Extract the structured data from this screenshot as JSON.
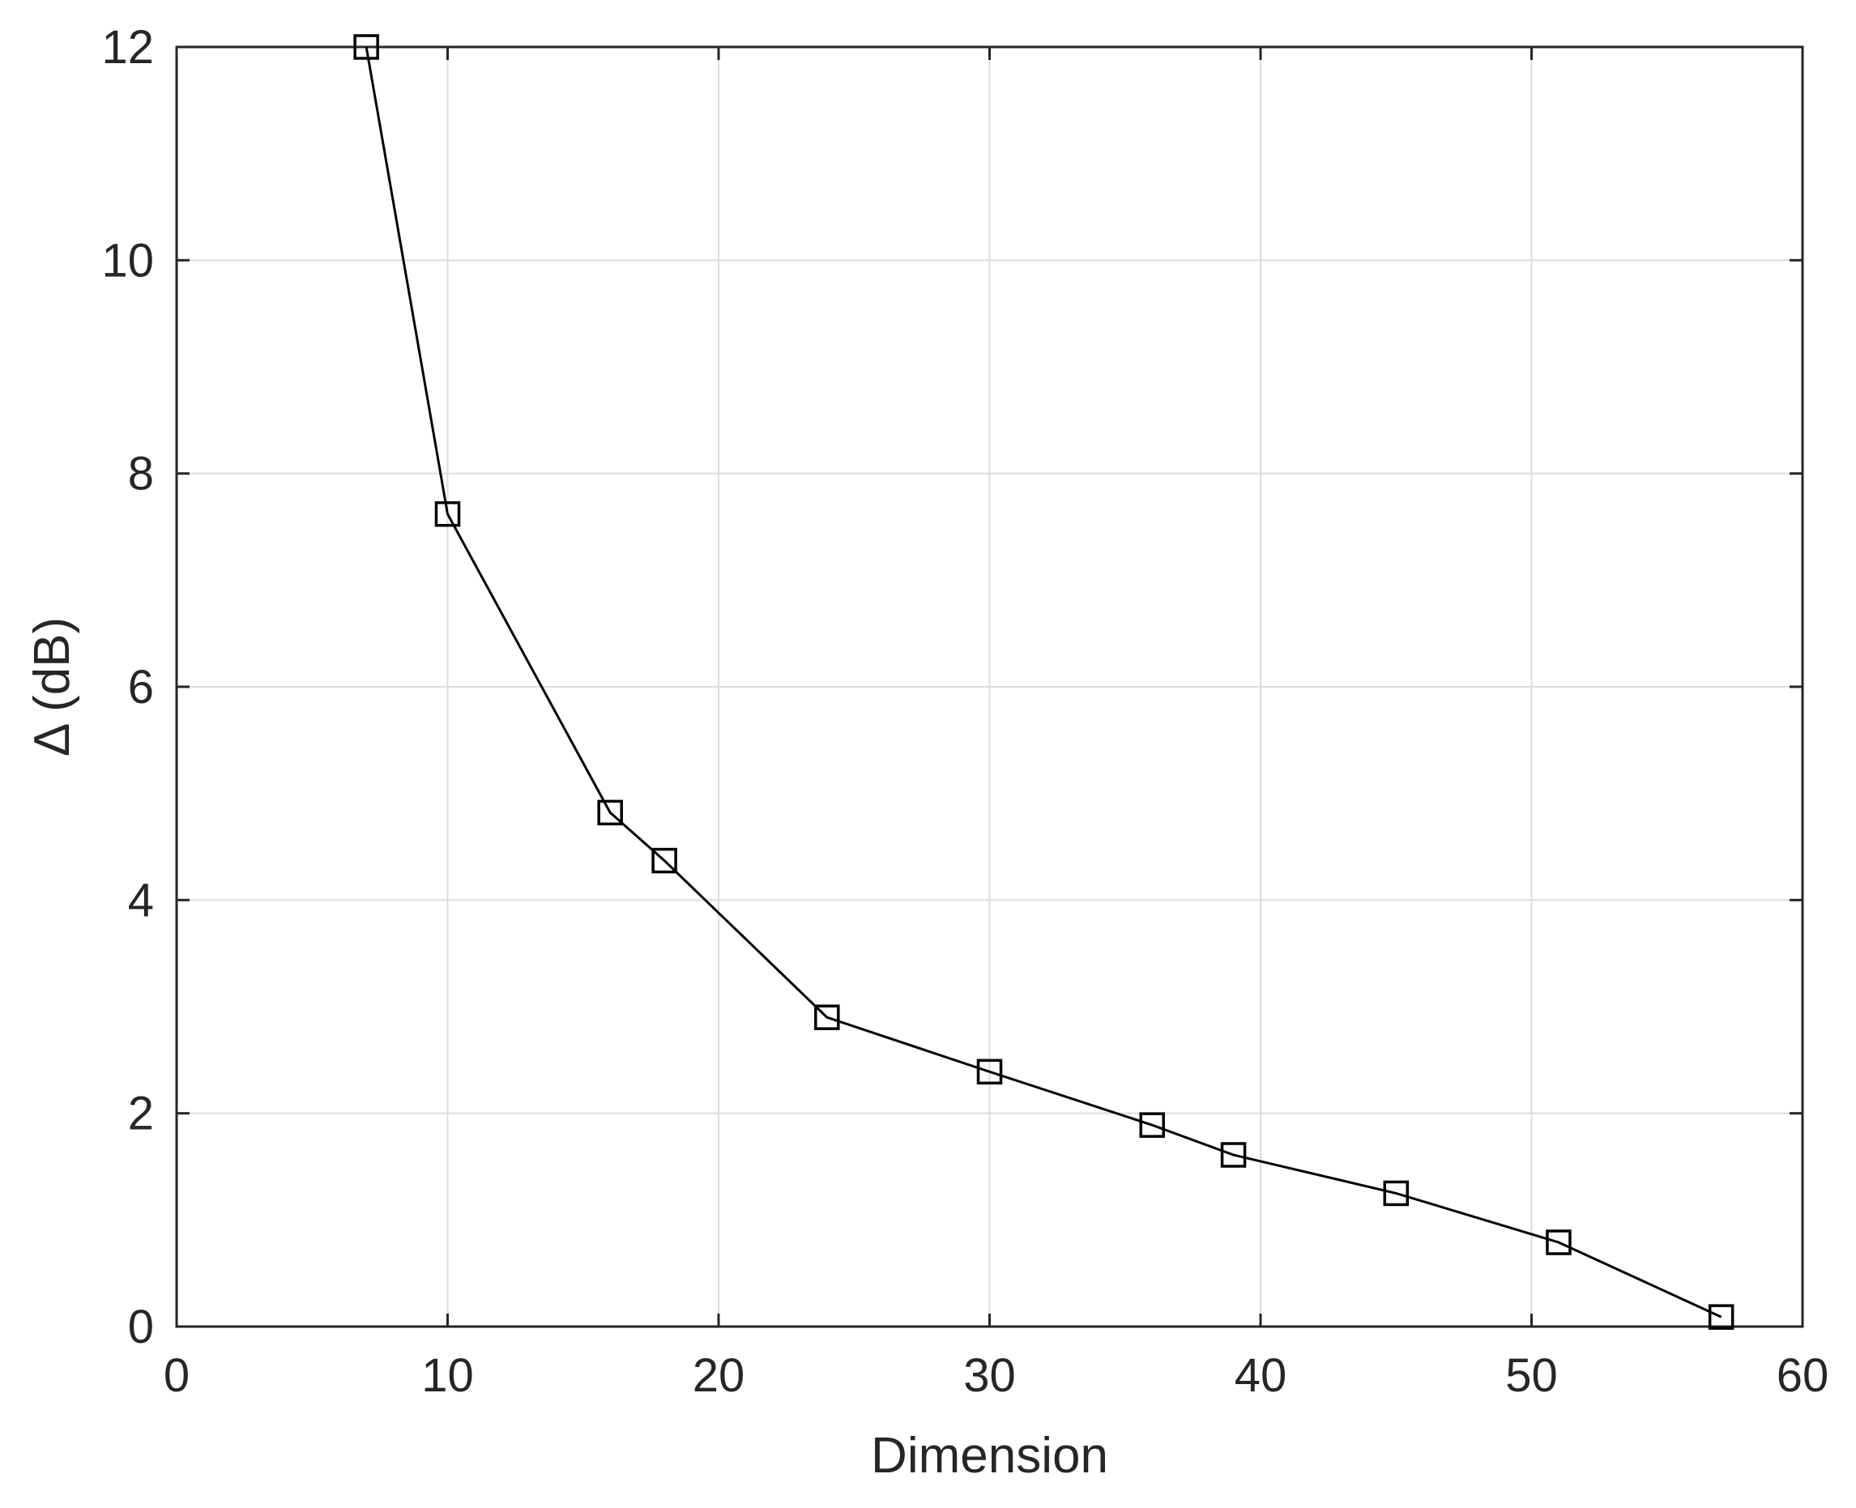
{
  "chart_data": {
    "type": "line",
    "xlabel": "Dimension",
    "ylabel": "Δ (dB)",
    "xlim": [
      0,
      60
    ],
    "ylim": [
      0,
      12
    ],
    "xticks": [
      0,
      10,
      20,
      30,
      40,
      50,
      60
    ],
    "yticks": [
      0,
      2,
      4,
      6,
      8,
      10,
      12
    ],
    "grid": true,
    "marker": "square",
    "line_color": "#000000",
    "series": [
      {
        "x": [
          7,
          10,
          16,
          18,
          24,
          30,
          36,
          39,
          45,
          51,
          57
        ],
        "y": [
          12.0,
          7.62,
          4.82,
          4.37,
          2.9,
          2.39,
          1.89,
          1.61,
          1.25,
          0.79,
          0.09
        ]
      }
    ]
  }
}
